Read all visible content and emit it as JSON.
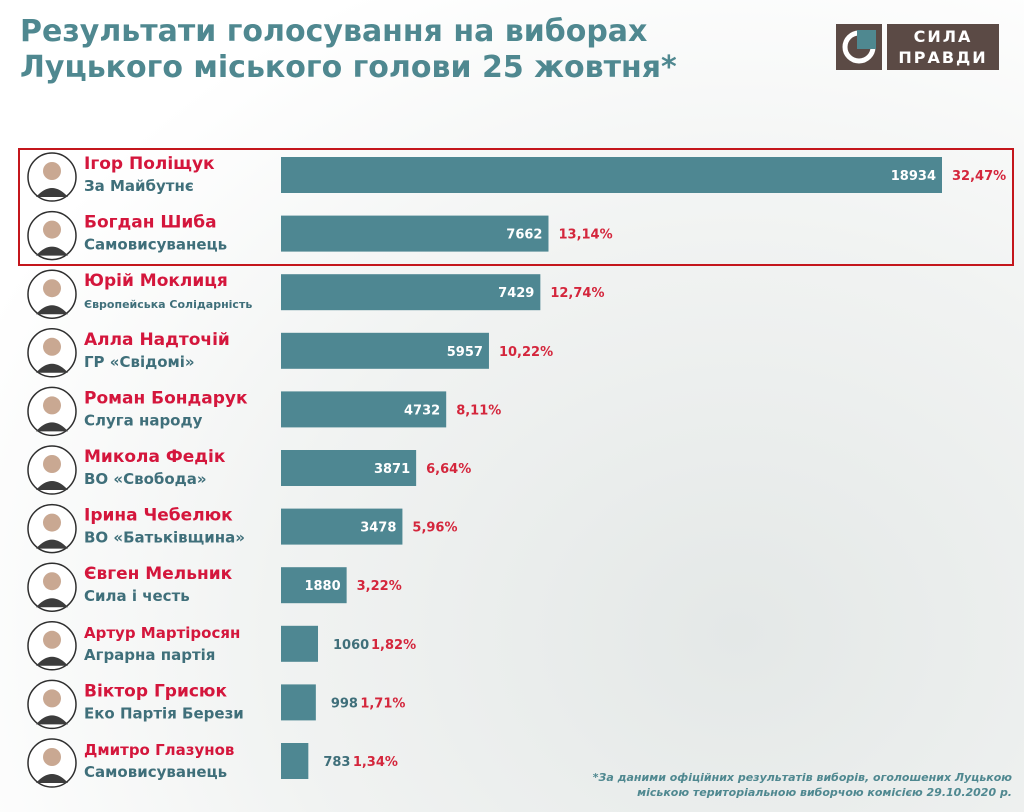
{
  "title": {
    "line1": "Результати голосування на виборах",
    "line2": "Луцького міського голови 25 жовтня*"
  },
  "logo": {
    "line1": "СИЛА",
    "line2": "ПРАВДИ",
    "icon": "sila-pravdy-logo-icon",
    "colors": {
      "mark": "#5b4a45",
      "accent": "#4f8890"
    }
  },
  "colors": {
    "bar": "#4e8792",
    "name": "#d4163c",
    "party": "#3f6f7a",
    "percent": "#d4263c",
    "title": "#4f8890",
    "highlight": "#c4161c"
  },
  "footnote": {
    "line1": "*За даними офіційних результатів виборів, оголошених Луцькою",
    "line2": "міською територіальною виборчою комісією 29.10.2020 р."
  },
  "chart_data": {
    "type": "bar",
    "orientation": "horizontal",
    "highlighted_count": 2,
    "categories": [
      {
        "name": "Ігор Поліщук",
        "party": "За Майбутнє",
        "votes": 18934,
        "votes_label": "18934",
        "percent": "32,47%"
      },
      {
        "name": "Богдан Шиба",
        "party": "Самовисуванець",
        "votes": 7662,
        "votes_label": "7662",
        "percent": "13,14%"
      },
      {
        "name": "Юрій Моклиця",
        "party": "Європейська Солідарність",
        "votes": 7429,
        "votes_label": "7429",
        "percent": "12,74%"
      },
      {
        "name": "Алла Надточій",
        "party": "ГР «Свідомі»",
        "votes": 5957,
        "votes_label": "5957",
        "percent": "10,22%"
      },
      {
        "name": "Роман Бондарук",
        "party": "Слуга народу",
        "votes": 4732,
        "votes_label": "4732",
        "percent": "8,11%"
      },
      {
        "name": "Микола Федік",
        "party": "ВО «Свобода»",
        "votes": 3871,
        "votes_label": "3871",
        "percent": "6,64%"
      },
      {
        "name": "Ірина Чебелюк",
        "party": "ВО «Батьківщина»",
        "votes": 3478,
        "votes_label": "3478",
        "percent": "5,96%"
      },
      {
        "name": "Євген Мельник",
        "party": "Сила і честь",
        "votes": 1880,
        "votes_label": "1880",
        "percent": "3,22%"
      },
      {
        "name": "Артур Мартіросян",
        "party": "Аграрна партія",
        "votes": 1060,
        "votes_label": "1060",
        "percent": "1,82%"
      },
      {
        "name": "Віктор Грисюк",
        "party": "Еко Партія Берези",
        "votes": 998,
        "votes_label": "998",
        "percent": "1,71%"
      },
      {
        "name": "Дмитро Глазунов",
        "party": "Самовисуванець",
        "votes": 783,
        "votes_label": "783",
        "percent": "1,34%"
      }
    ]
  }
}
